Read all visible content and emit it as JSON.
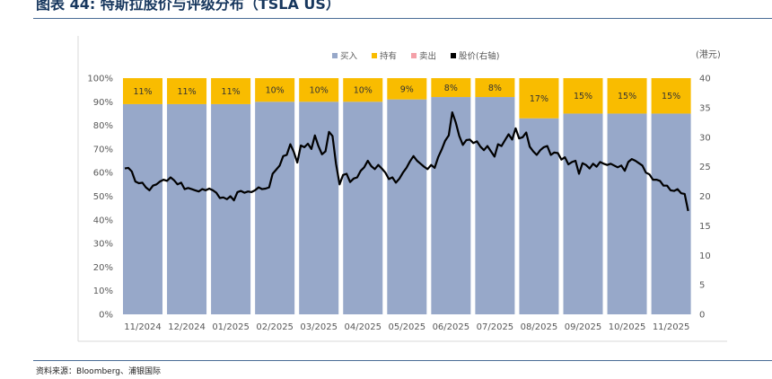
{
  "header": {
    "title": "图表 44: 特斯拉股价与评级分布（TSLA US）"
  },
  "footer": {
    "source": "资料来源：Bloomberg、浦银国际"
  },
  "chart_data": {
    "type": "bar",
    "categories": [
      "11/2024",
      "12/2024",
      "01/2025",
      "02/2025",
      "03/2025",
      "04/2025",
      "05/2025",
      "06/2025",
      "07/2025",
      "08/2025",
      "09/2025",
      "10/2025",
      "11/2025"
    ],
    "series": [
      {
        "name": "买入",
        "color": "#97a8c9",
        "values": [
          89,
          89,
          89,
          90,
          90,
          90,
          91,
          92,
          92,
          83,
          85,
          85,
          85
        ]
      },
      {
        "name": "持有",
        "color": "#f9bc00",
        "values": [
          11,
          11,
          11,
          10,
          10,
          10,
          9,
          8,
          8,
          17,
          15,
          15,
          15
        ]
      },
      {
        "name": "卖出",
        "color": "#f4a0a8",
        "values": [
          0,
          0,
          0,
          0,
          0,
          0,
          0,
          0,
          0,
          0,
          0,
          0,
          0
        ]
      }
    ],
    "bar_labels": [
      "11%",
      "11%",
      "11%",
      "10%",
      "10%",
      "10%",
      "9%",
      "8%",
      "8%",
      "17%",
      "15%",
      "15%",
      "15%"
    ],
    "price_series": {
      "name": "股价 (右轴)",
      "color": "#000000",
      "values": [
        24.7,
        24.8,
        24.2,
        22.5,
        22.2,
        22.3,
        21.5,
        21.0,
        21.8,
        22.0,
        22.5,
        22.8,
        22.6,
        23.2,
        22.7,
        22.0,
        22.3,
        21.2,
        21.4,
        21.2,
        21.0,
        20.8,
        21.2,
        21.0,
        21.3,
        21.0,
        20.6,
        19.7,
        19.8,
        19.5,
        20.0,
        19.3,
        20.7,
        20.9,
        20.6,
        20.8,
        20.7,
        21.0,
        21.5,
        21.2,
        21.3,
        21.5,
        23.8,
        24.5,
        25.2,
        26.8,
        27.0,
        28.8,
        27.5,
        25.7,
        28.6,
        28.3,
        28.9,
        28.0,
        30.3,
        28.5,
        27.1,
        27.6,
        30.9,
        30.2,
        25.5,
        22.0,
        23.6,
        23.8,
        22.4,
        23.0,
        23.2,
        24.3,
        24.9,
        26.0,
        25.1,
        24.6,
        25.3,
        24.7,
        24.0,
        22.9,
        23.2,
        22.3,
        23.0,
        24.0,
        24.8,
        25.9,
        26.8,
        26.0,
        25.5,
        25.0,
        24.6,
        25.3,
        24.8,
        26.6,
        27.9,
        29.4,
        30.3,
        34.2,
        32.5,
        30.2,
        28.7,
        29.5,
        29.6,
        29.0,
        29.3,
        28.4,
        27.8,
        28.5,
        27.6,
        26.7,
        28.8,
        28.5,
        29.5,
        30.5,
        29.6,
        31.5,
        29.8,
        30.0,
        30.8,
        28.4,
        27.6,
        27.0,
        27.8,
        28.3,
        28.5,
        27.0,
        27.4,
        27.3,
        26.2,
        26.6,
        25.4,
        25.8,
        26.0,
        23.8,
        25.6,
        25.3,
        24.7,
        25.5,
        25.0,
        25.8,
        25.5,
        25.3,
        25.5,
        25.2,
        24.9,
        25.2,
        24.3,
        25.8,
        26.3,
        26.0,
        25.6,
        25.2,
        24.0,
        23.7,
        22.8,
        22.8,
        22.6,
        21.8,
        21.8,
        21.0,
        20.9,
        21.2,
        20.5,
        20.4,
        17.5
      ],
      "ylim": [
        0,
        40
      ],
      "unit": "(港元)"
    },
    "y_left": {
      "ticks": [
        "0%",
        "10%",
        "20%",
        "30%",
        "40%",
        "50%",
        "60%",
        "70%",
        "80%",
        "90%",
        "100%"
      ],
      "lim": [
        0,
        100
      ]
    },
    "y_right": {
      "ticks": [
        "0",
        "5",
        "10",
        "15",
        "20",
        "25",
        "30",
        "35",
        "40"
      ]
    },
    "legend": [
      "买入",
      "持有",
      "卖出",
      "股价(右轴)"
    ]
  }
}
